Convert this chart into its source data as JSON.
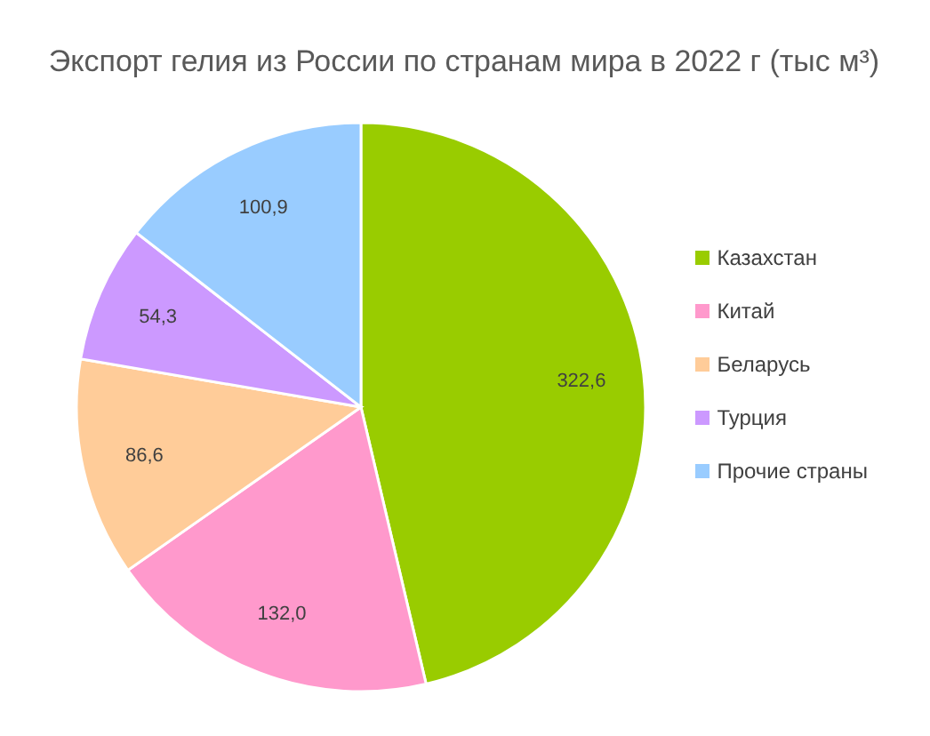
{
  "chart_data": {
    "type": "pie",
    "title": "Экспорт гелия из России по странам мира в 2022 г (тыс м³)",
    "categories": [
      "Казахстан",
      "Китай",
      "Беларусь",
      "Турция",
      "Прочие страны"
    ],
    "values": [
      322.6,
      132.0,
      86.6,
      54.3,
      100.9
    ],
    "value_labels": [
      "322,6",
      "132,0",
      "86,6",
      "54,3",
      "100,9"
    ],
    "colors": [
      "#99cc00",
      "#ff99cc",
      "#ffcc99",
      "#cc99ff",
      "#99ccff"
    ],
    "legend": "right"
  }
}
